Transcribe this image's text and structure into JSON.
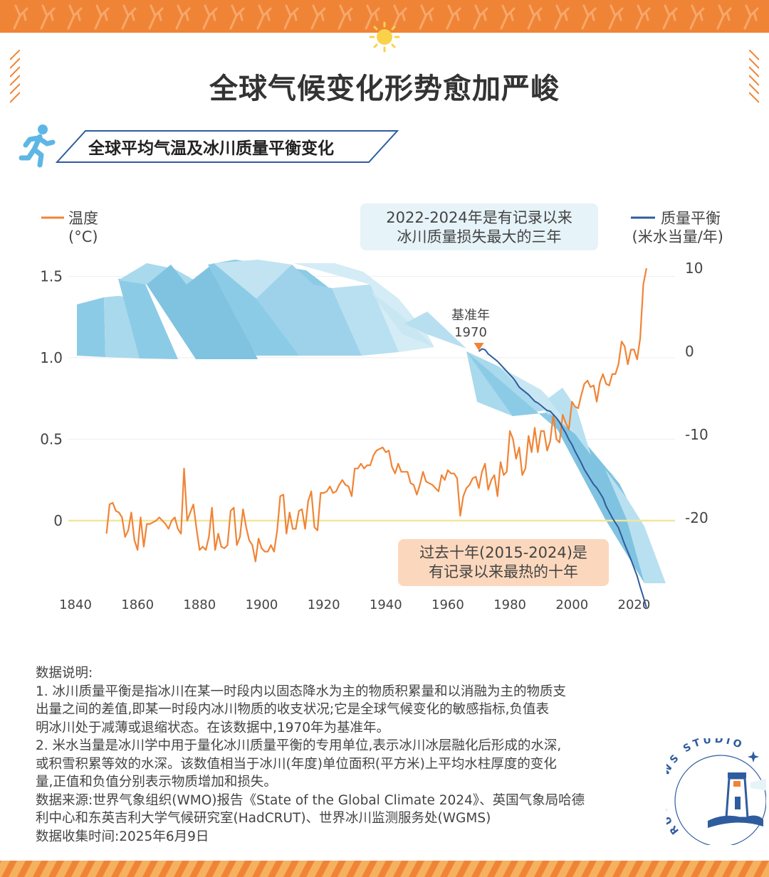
{
  "header": {
    "title": "全球气候变化形势愈加严峻",
    "subtitle": "全球平均气温及冰川质量平衡变化"
  },
  "colors": {
    "orange": "#f08436",
    "blue": "#2f5c9e",
    "ice": "#7fc3e0",
    "zero_line": "#f3e59b",
    "callout_blue": "#e6f3f8",
    "callout_orange": "#fbd8bd"
  },
  "icons": [
    "sun-icon",
    "runner-icon",
    "lighthouse-icon"
  ],
  "chart_data": {
    "type": "line",
    "left_axis": {
      "label_line1": "温度",
      "label_line2": "(°C)",
      "ticks": [
        "1.5",
        "1.0",
        "0.5",
        "0"
      ],
      "range": [
        -0.45,
        1.6
      ]
    },
    "right_axis": {
      "label_line1": "质量平衡",
      "label_line2": "(米水当量/年)",
      "ticks": [
        "10",
        "0",
        "-10",
        "-20"
      ],
      "range": [
        -28,
        10
      ]
    },
    "x_axis": {
      "ticks": [
        "1840",
        "1860",
        "1880",
        "1900",
        "1920",
        "1940",
        "1960",
        "1980",
        "2000",
        "2020"
      ],
      "range": [
        1840,
        2030
      ]
    },
    "series": [
      {
        "name": "温度",
        "axis": "left",
        "x": [
          1850,
          1851,
          1852,
          1853,
          1854,
          1855,
          1856,
          1857,
          1858,
          1859,
          1860,
          1861,
          1862,
          1863,
          1864,
          1865,
          1866,
          1867,
          1868,
          1869,
          1870,
          1871,
          1872,
          1873,
          1874,
          1875,
          1876,
          1877,
          1878,
          1879,
          1880,
          1881,
          1882,
          1883,
          1884,
          1885,
          1886,
          1887,
          1888,
          1889,
          1890,
          1891,
          1892,
          1893,
          1894,
          1895,
          1896,
          1897,
          1898,
          1899,
          1900,
          1901,
          1902,
          1903,
          1904,
          1905,
          1906,
          1907,
          1908,
          1909,
          1910,
          1911,
          1912,
          1913,
          1914,
          1915,
          1916,
          1917,
          1918,
          1919,
          1920,
          1921,
          1922,
          1923,
          1924,
          1925,
          1926,
          1927,
          1928,
          1929,
          1930,
          1931,
          1932,
          1933,
          1934,
          1935,
          1936,
          1937,
          1938,
          1939,
          1940,
          1941,
          1942,
          1943,
          1944,
          1945,
          1946,
          1947,
          1948,
          1949,
          1950,
          1951,
          1952,
          1953,
          1954,
          1955,
          1956,
          1957,
          1958,
          1959,
          1960,
          1961,
          1962,
          1963,
          1964,
          1965,
          1966,
          1967,
          1968,
          1969,
          1970,
          1971,
          1972,
          1973,
          1974,
          1975,
          1976,
          1977,
          1978,
          1979,
          1980,
          1981,
          1982,
          1983,
          1984,
          1985,
          1986,
          1987,
          1988,
          1989,
          1990,
          1991,
          1992,
          1993,
          1994,
          1995,
          1996,
          1997,
          1998,
          1999,
          2000,
          2001,
          2002,
          2003,
          2004,
          2005,
          2006,
          2007,
          2008,
          2009,
          2010,
          2011,
          2012,
          2013,
          2014,
          2015,
          2016,
          2017,
          2018,
          2019,
          2020,
          2021,
          2022,
          2023,
          2024
        ],
        "y": [
          -0.08,
          0.1,
          0.11,
          0.06,
          0.05,
          0.02,
          -0.1,
          -0.06,
          0.05,
          -0.12,
          -0.18,
          0.02,
          -0.16,
          -0.02,
          -0.02,
          -0.01,
          0.0,
          0.02,
          0.0,
          -0.02,
          -0.05,
          0.0,
          0.02,
          -0.05,
          -0.08,
          0.32,
          0.0,
          0.05,
          0.1,
          -0.05,
          -0.18,
          -0.16,
          -0.18,
          -0.1,
          0.08,
          -0.18,
          -0.08,
          -0.16,
          -0.17,
          -0.15,
          0.06,
          0.08,
          -0.15,
          -0.1,
          0.07,
          -0.04,
          -0.12,
          -0.15,
          -0.25,
          -0.11,
          -0.17,
          -0.19,
          -0.19,
          -0.15,
          -0.19,
          -0.06,
          0.15,
          0.16,
          -0.08,
          0.05,
          -0.05,
          -0.05,
          0.06,
          0.07,
          -0.05,
          0.12,
          0.18,
          -0.04,
          -0.06,
          0.17,
          0.17,
          0.18,
          0.21,
          0.17,
          0.18,
          0.22,
          0.25,
          0.22,
          0.21,
          0.15,
          0.32,
          0.32,
          0.35,
          0.32,
          0.34,
          0.34,
          0.4,
          0.43,
          0.44,
          0.45,
          0.42,
          0.43,
          0.33,
          0.29,
          0.35,
          0.3,
          0.3,
          0.3,
          0.23,
          0.22,
          0.16,
          0.22,
          0.3,
          0.24,
          0.23,
          0.22,
          0.2,
          0.18,
          0.28,
          0.25,
          0.31,
          0.29,
          0.29,
          0.26,
          0.03,
          0.15,
          0.2,
          0.22,
          0.26,
          0.27,
          0.2,
          0.3,
          0.35,
          0.19,
          0.25,
          0.28,
          0.15,
          0.36,
          0.28,
          0.3,
          0.55,
          0.5,
          0.38,
          0.45,
          0.28,
          0.32,
          0.52,
          0.42,
          0.57,
          0.42,
          0.55,
          0.55,
          0.43,
          0.49,
          0.65,
          0.5,
          0.48,
          0.65,
          0.6,
          0.56,
          0.73,
          0.7,
          0.69,
          0.77,
          0.84,
          0.86,
          0.82,
          0.83,
          0.73,
          0.85,
          0.9,
          0.84,
          0.83,
          0.9,
          0.9,
          0.96,
          1.1,
          1.07,
          0.96,
          1.05,
          1.05,
          0.99,
          1.12,
          1.45,
          1.55
        ]
      },
      {
        "name": "质量平衡",
        "axis": "right",
        "x": [
          1970,
          1971,
          1972,
          1973,
          1974,
          1975,
          1976,
          1977,
          1978,
          1979,
          1980,
          1981,
          1982,
          1983,
          1984,
          1985,
          1986,
          1987,
          1988,
          1989,
          1990,
          1991,
          1992,
          1993,
          1994,
          1995,
          1996,
          1997,
          1998,
          1999,
          2000,
          2001,
          2002,
          2003,
          2004,
          2005,
          2006,
          2007,
          2008,
          2009,
          2010,
          2011,
          2012,
          2013,
          2014,
          2015,
          2016,
          2017,
          2018,
          2019,
          2020,
          2021,
          2022,
          2023,
          2024
        ],
        "y": [
          0,
          0.3,
          0.2,
          -0.3,
          -0.6,
          -0.9,
          -1.2,
          -1.6,
          -2.0,
          -2.4,
          -2.8,
          -3.2,
          -3.7,
          -4.3,
          -4.6,
          -4.9,
          -5.2,
          -5.6,
          -6.0,
          -6.2,
          -6.5,
          -6.8,
          -7.1,
          -7.2,
          -7.6,
          -8.0,
          -8.5,
          -9.2,
          -9.8,
          -10.6,
          -11.2,
          -12.0,
          -12.7,
          -13.4,
          -14.2,
          -14.8,
          -15.4,
          -16.0,
          -16.4,
          -17.0,
          -17.6,
          -18.6,
          -19.3,
          -20.0,
          -20.6,
          -21.2,
          -22.2,
          -23.2,
          -24.1,
          -25.0,
          -26.0,
          -27.0,
          -28.3,
          -29.5,
          -30.8
        ]
      }
    ],
    "baseline": {
      "year": 1970,
      "label_line1": "基准年",
      "label_line2": "1970"
    },
    "annotations": {
      "glacier_line1": "2022-2024年是有记录以来",
      "glacier_line2": "冰川质量损失最大的三年",
      "warm_line1": "过去十年(2015-2024)是",
      "warm_line2": "有记录以来最热的十年"
    },
    "grid": true,
    "legend": "top-left / top-right"
  },
  "notes": {
    "heading": "数据说明:",
    "line1": "1. 冰川质量平衡是指冰川在某一时段内以固态降水为主的物质积累量和以消融为主的物质支",
    "line2": "出量之间的差值,即某一时段内冰川物质的收支状况;它是全球气候变化的敏感指标,负值表",
    "line3": "明冰川处于减薄或退缩状态。在该数据中,1970年为基准年。",
    "line4": "2. 米水当量是冰川学中用于量化冰川质量平衡的专用单位,表示冰川冰层融化后形成的水深,",
    "line5": "或积雪积累等效的水深。该数值相当于冰川(年度)单位面积(平方米)上平均水柱厚度的变化",
    "line6": "量,正值和负值分别表示物质增加和损失。",
    "source_line1": "数据来源:世界气象组织(WMO)报告《State of the Global Climate 2024》、英国气象局哈德",
    "source_line2": "利中心和东英吉利大学气候研究室(HadCRUT)、世界冰川监测服务处(WGMS)",
    "collected": "数据收集时间:2025年6月9日"
  },
  "logo": {
    "text": "RUC NEWS STUDIO"
  }
}
